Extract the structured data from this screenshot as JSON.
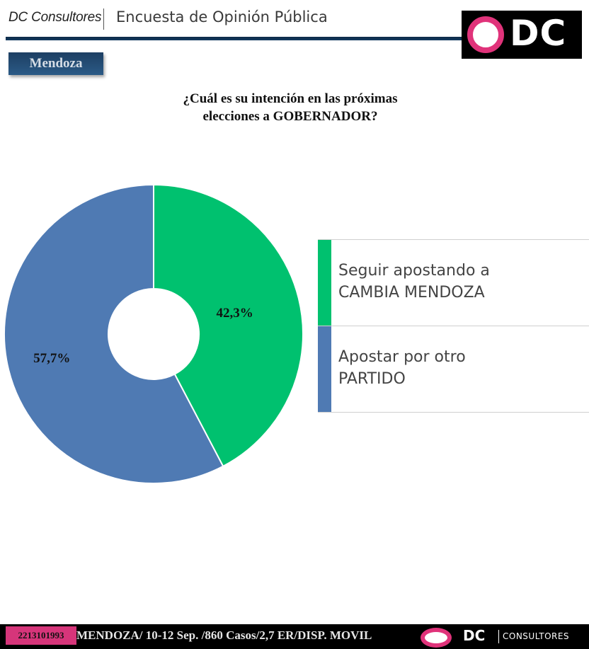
{
  "header": {
    "brand": "DC Consultores",
    "title": "Encuesta de Opinión Pública",
    "logo_text": "DC"
  },
  "region_badge": "Mendoza",
  "question": {
    "line1": "¿Cuál es su intención en  las próximas",
    "line2": "elecciones a GOBERNADOR?"
  },
  "chart_data": {
    "type": "pie",
    "donut": true,
    "start": "12 o'clock, clockwise",
    "categories": [
      "Seguir apostando a CAMBIA MENDOZA",
      "Apostar por otro PARTIDO"
    ],
    "values": [
      42.3,
      57.7
    ],
    "data_labels": [
      "42,3%",
      "57,7%"
    ],
    "colors": [
      "#00c16f",
      "#4f7ab3"
    ],
    "legend_position": "right",
    "title": "¿Cuál es su intención en  las próximas elecciones a GOBERNADOR?"
  },
  "legend": [
    {
      "line1": "Seguir apostando a",
      "line2": "CAMBIA MENDOZA"
    },
    {
      "line1": "Apostar por otro",
      "line2": "PARTIDO"
    }
  ],
  "footer": {
    "id": "2213101993",
    "info": "MENDOZA/ 10-12 Sep. /860 Casos/2,7 ER/DISP. MOVIL",
    "brand_dc": "DC",
    "brand_consultores": "CONSULTORES"
  }
}
